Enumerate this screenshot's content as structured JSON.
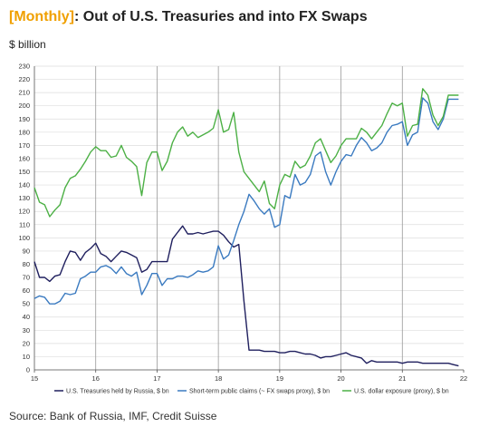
{
  "header": {
    "title_tag": "Monthly",
    "title_text": ": Out of U.S. Treasuries and into FX Swaps",
    "unit": "$ billion"
  },
  "footer": {
    "source": "Source: Bank of Russia, IMF, Credit Suisse"
  },
  "colors": {
    "series1": "#1f1f5e",
    "series2": "#3a7ac0",
    "series3": "#4cb045",
    "title_accent": "#f0a000",
    "grid": "#dddddd",
    "year_line": "#999999"
  },
  "chart_data": {
    "type": "line",
    "xlim": [
      2015,
      2022
    ],
    "ylim": [
      0,
      230
    ],
    "x_ticks": [
      "15",
      "16",
      "17",
      "18",
      "19",
      "20",
      "21",
      "22"
    ],
    "y_ticks": [
      0,
      10,
      20,
      30,
      40,
      50,
      60,
      70,
      80,
      90,
      100,
      110,
      120,
      130,
      140,
      150,
      160,
      170,
      180,
      190,
      200,
      210,
      220,
      230
    ],
    "grid": true,
    "legend_position": "bottom",
    "x": [
      2015.0,
      2015.083,
      2015.167,
      2015.25,
      2015.333,
      2015.417,
      2015.5,
      2015.583,
      2015.667,
      2015.75,
      2015.833,
      2015.917,
      2016.0,
      2016.083,
      2016.167,
      2016.25,
      2016.333,
      2016.417,
      2016.5,
      2016.583,
      2016.667,
      2016.75,
      2016.833,
      2016.917,
      2017.0,
      2017.083,
      2017.167,
      2017.25,
      2017.333,
      2017.417,
      2017.5,
      2017.583,
      2017.667,
      2017.75,
      2017.833,
      2017.917,
      2018.0,
      2018.083,
      2018.167,
      2018.25,
      2018.333,
      2018.417,
      2018.5,
      2018.583,
      2018.667,
      2018.75,
      2018.833,
      2018.917,
      2019.0,
      2019.083,
      2019.167,
      2019.25,
      2019.333,
      2019.417,
      2019.5,
      2019.583,
      2019.667,
      2019.75,
      2019.833,
      2019.917,
      2020.0,
      2020.083,
      2020.167,
      2020.25,
      2020.333,
      2020.417,
      2020.5,
      2020.583,
      2020.667,
      2020.75,
      2020.833,
      2020.917,
      2021.0,
      2021.083,
      2021.167,
      2021.25,
      2021.333,
      2021.417,
      2021.5,
      2021.583,
      2021.667,
      2021.75,
      2021.833,
      2021.917
    ],
    "series": [
      {
        "name": "U.S. Treasuries held by Russia, $ bn",
        "values": [
          82,
          70,
          70,
          67,
          71,
          72,
          82,
          90,
          89,
          83,
          89,
          92,
          96,
          88,
          86,
          82,
          86,
          90,
          89,
          87,
          85,
          74,
          76,
          82,
          82,
          82,
          82,
          99,
          104,
          109,
          103,
          103,
          104,
          103,
          104,
          105,
          105,
          102,
          97,
          93,
          95,
          52,
          15,
          15,
          15,
          14,
          14,
          14,
          13,
          13,
          14,
          14,
          13,
          12,
          12,
          11,
          9,
          10,
          10,
          11,
          12,
          13,
          11,
          10,
          9,
          5,
          7,
          6,
          6,
          6,
          6,
          6,
          5,
          6,
          6,
          6,
          5,
          5,
          5,
          5,
          5,
          5,
          4,
          3
        ]
      },
      {
        "name": "Short-term public claims (~ FX swaps proxy), $ bn",
        "values": [
          54,
          56,
          55,
          50,
          50,
          52,
          58,
          57,
          58,
          69,
          71,
          74,
          74,
          78,
          79,
          77,
          73,
          78,
          73,
          71,
          74,
          57,
          64,
          73,
          73,
          64,
          69,
          69,
          71,
          71,
          70,
          72,
          75,
          74,
          75,
          78,
          94,
          84,
          87,
          98,
          110,
          120,
          133,
          128,
          122,
          118,
          122,
          108,
          110,
          132,
          130,
          148,
          140,
          142,
          148,
          162,
          165,
          150,
          140,
          150,
          158,
          163,
          162,
          170,
          176,
          172,
          166,
          168,
          172,
          180,
          185,
          186,
          188,
          170,
          178,
          180,
          206,
          202,
          188,
          182,
          190,
          205,
          205,
          205
        ]
      },
      {
        "name": "U.S. dollar exposure (proxy), $ bn",
        "values": [
          138,
          127,
          125,
          116,
          121,
          125,
          138,
          145,
          147,
          152,
          158,
          165,
          169,
          166,
          166,
          161,
          162,
          170,
          161,
          158,
          154,
          132,
          157,
          165,
          165,
          151,
          158,
          172,
          180,
          184,
          177,
          180,
          176,
          178,
          180,
          183,
          197,
          180,
          182,
          195,
          165,
          150,
          145,
          140,
          135,
          143,
          126,
          122,
          140,
          148,
          146,
          158,
          153,
          155,
          162,
          172,
          175,
          166,
          157,
          162,
          170,
          175,
          175,
          175,
          183,
          180,
          175,
          180,
          185,
          194,
          202,
          200,
          202,
          177,
          185,
          186,
          213,
          208,
          193,
          185,
          192,
          208,
          208,
          208
        ]
      }
    ]
  }
}
